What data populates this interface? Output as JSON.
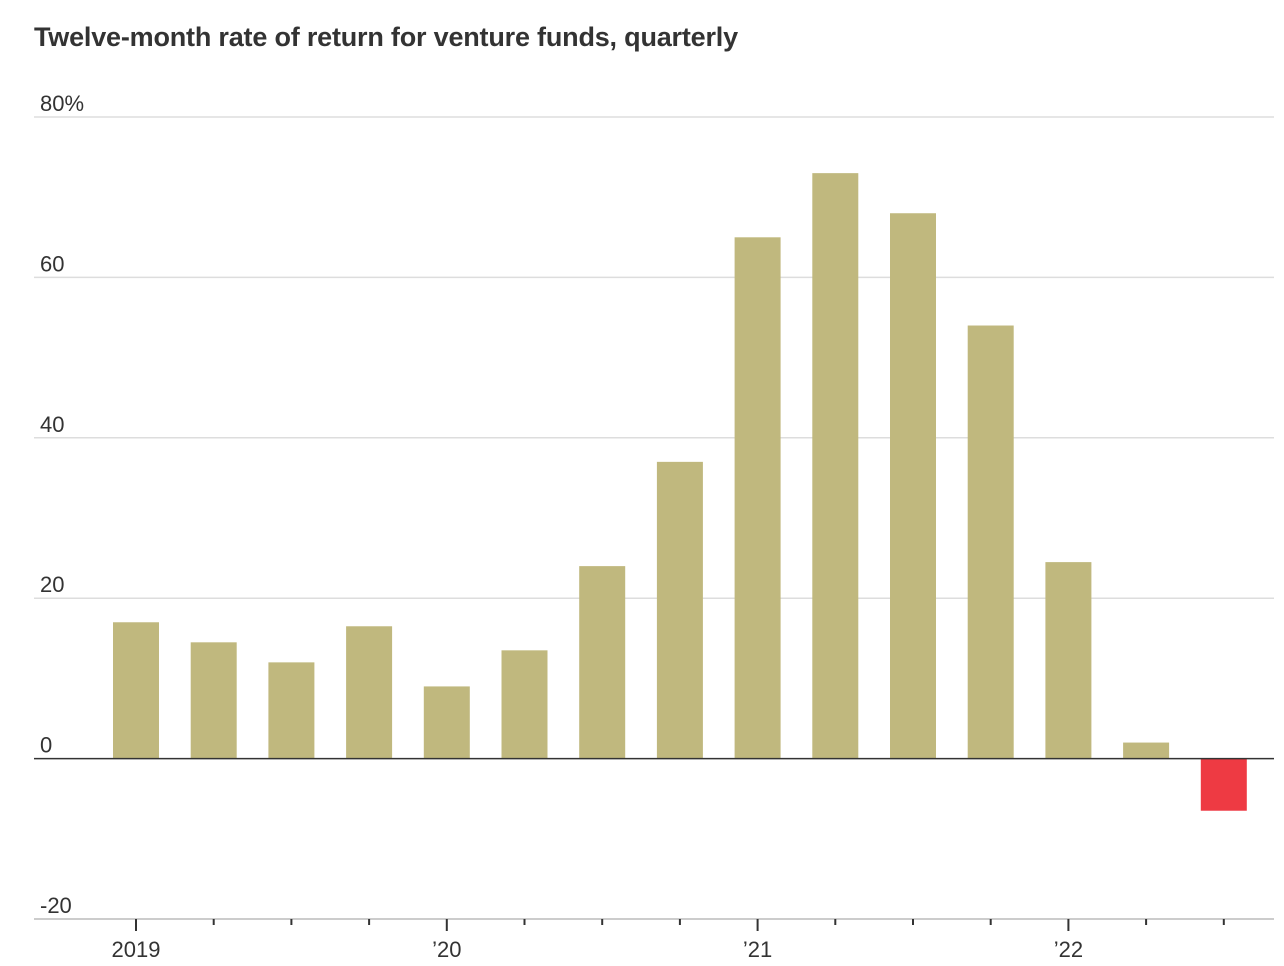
{
  "chart_data": {
    "type": "bar",
    "title": "Twelve-month rate of return for venture funds, quarterly",
    "xlabel": "",
    "ylabel": "",
    "categories": [
      "2019 Q1",
      "2019 Q2",
      "2019 Q3",
      "2019 Q4",
      "2020 Q1",
      "2020 Q2",
      "2020 Q3",
      "2020 Q4",
      "2021 Q1",
      "2021 Q2",
      "2021 Q3",
      "2021 Q4",
      "2022 Q1",
      "2022 Q2",
      "2022 Q3"
    ],
    "values": [
      17,
      14.5,
      12,
      16.5,
      9,
      13.5,
      24,
      37,
      65,
      73,
      68,
      54,
      24.5,
      2,
      -6.5
    ],
    "ylim": [
      -20,
      80
    ],
    "yticks": [
      80,
      60,
      40,
      20,
      0,
      -20
    ],
    "ytick_labels": [
      "80%",
      "60",
      "40",
      "20",
      "0",
      "-20"
    ],
    "xtick_labels": [
      {
        "label": "2019",
        "index": 0
      },
      {
        "label": "’20",
        "index": 4
      },
      {
        "label": "’21",
        "index": 8
      },
      {
        "label": "’22",
        "index": 12
      }
    ],
    "grid": true,
    "legend": "none",
    "colors": {
      "positive": "#c0b87e",
      "negative": "#ee3a43",
      "gridline": "#dddddd",
      "zero_line": "#333333",
      "axis_line": "#bbbbbb",
      "tick_mark": "#333333"
    }
  }
}
